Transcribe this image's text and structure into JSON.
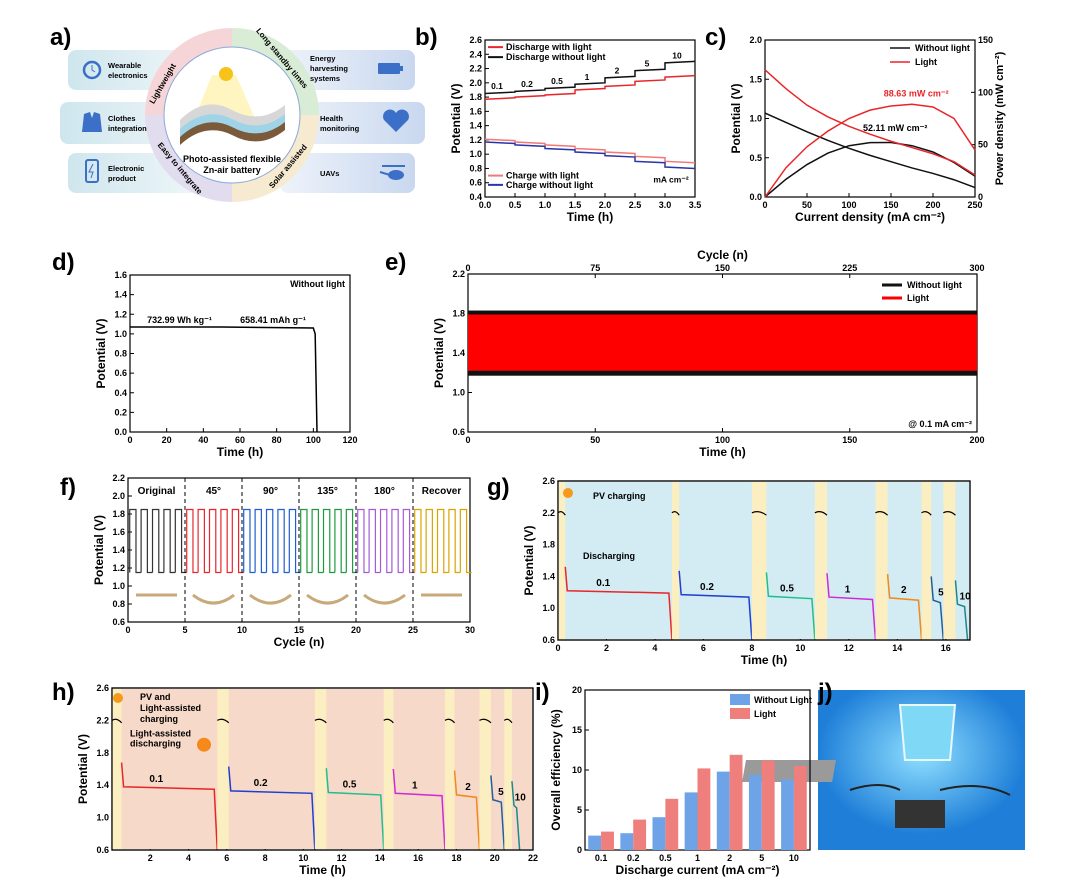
{
  "panel_labels": [
    "a)",
    "b)",
    "c)",
    "d)",
    "e)",
    "f)",
    "g)",
    "h)",
    "i)",
    "j)"
  ],
  "schematic": {
    "center_title_1": "Photo-assisted flexible",
    "center_title_2": "Zn-air battery",
    "ring": [
      "Lightweight",
      "Long standby times",
      "Easy to integrate",
      "Solar assisted"
    ],
    "left": [
      {
        "l1": "Wearable",
        "l2": "electronics",
        "icon": "watch-icon"
      },
      {
        "l1": "Clothes",
        "l2": "integration",
        "icon": "jacket-icon"
      },
      {
        "l1": "Electronic",
        "l2": "product",
        "icon": "phone-icon"
      }
    ],
    "right": [
      {
        "l1": "Energy",
        "l2": "harvesting",
        "l3": "systems",
        "icon": "battery-icon"
      },
      {
        "l1": "Health",
        "l2": "monitoring",
        "icon": "heart-icon"
      },
      {
        "l1": "UAVs",
        "icon": "helicopter-icon"
      }
    ]
  },
  "chart_data": [
    {
      "id": "b",
      "type": "line",
      "xlabel": "Time (h)",
      "ylabel": "Potential (V)",
      "xlim": [
        0,
        3.5
      ],
      "xticks": [
        "0.0",
        "0.5",
        "1.0",
        "1.5",
        "2.0",
        "2.5",
        "3.0",
        "3.5"
      ],
      "ylim": [
        0.4,
        2.6
      ],
      "yticks": [
        "0.4",
        "0.6",
        "0.8",
        "1.0",
        "1.2",
        "1.4",
        "1.6",
        "1.8",
        "2.0",
        "2.2",
        "2.4",
        "2.6"
      ],
      "current_labels": [
        "0.1",
        "0.2",
        "0.5",
        "1",
        "2",
        "5",
        "10"
      ],
      "unit": "mA cm⁻²",
      "series": [
        {
          "name": "Discharge with light",
          "color": "#e8262a",
          "steps": [
            1.77,
            1.8,
            1.83,
            1.9,
            1.95,
            2.02,
            2.08
          ]
        },
        {
          "name": "Discharge without light",
          "color": "#111111",
          "steps": [
            1.85,
            1.88,
            1.92,
            1.98,
            2.07,
            2.17,
            2.28
          ]
        },
        {
          "name": "Charge with light",
          "color": "#f07a7a",
          "steps": [
            1.21,
            1.17,
            1.13,
            1.08,
            1.03,
            0.97,
            0.9
          ]
        },
        {
          "name": "Charge without light",
          "color": "#2b35a8",
          "steps": [
            1.17,
            1.13,
            1.08,
            1.03,
            0.98,
            0.9,
            0.82
          ]
        }
      ]
    },
    {
      "id": "c",
      "type": "line",
      "xlabel": "Current density (mA cm⁻²)",
      "ylabel": "Potential (V)",
      "ylabel_right": "Power density (mW cm⁻²)",
      "xlim": [
        0,
        250
      ],
      "xticks": [
        "0",
        "50",
        "100",
        "150",
        "200",
        "250"
      ],
      "ylim": [
        0,
        2.0
      ],
      "yticks": [
        "0.0",
        "0.5",
        "1.0",
        "1.5",
        "2.0"
      ],
      "ylim_right": [
        0,
        150
      ],
      "yticks_right": [
        "0",
        "50",
        "100",
        "150"
      ],
      "x": [
        0,
        25,
        50,
        75,
        100,
        125,
        150,
        175,
        200,
        225,
        250
      ],
      "series": [
        {
          "name": "Without light",
          "color": "#111111",
          "potential": [
            1.07,
            0.95,
            0.83,
            0.72,
            0.62,
            0.53,
            0.45,
            0.37,
            0.3,
            0.22,
            0.12
          ],
          "power": [
            0,
            17,
            31,
            42,
            49,
            52,
            52.11,
            49,
            43,
            33,
            20
          ]
        },
        {
          "name": "Light",
          "color": "#e8262a",
          "potential": [
            1.62,
            1.38,
            1.17,
            1.02,
            0.9,
            0.8,
            0.71,
            0.63,
            0.55,
            0.45,
            0.28
          ],
          "power": [
            0,
            28,
            48,
            63,
            75,
            83,
            87,
            88.63,
            86,
            75,
            45
          ]
        }
      ],
      "annotations": [
        "88.63 mW cm⁻²",
        "52.11 mW cm⁻²"
      ]
    },
    {
      "id": "d",
      "type": "line",
      "xlabel": "Time (h)",
      "ylabel": "Potential (V)",
      "xlim": [
        0,
        120
      ],
      "xticks": [
        "0",
        "20",
        "40",
        "60",
        "80",
        "100",
        "120"
      ],
      "ylim": [
        0,
        1.6
      ],
      "yticks": [
        "0.0",
        "0.2",
        "0.4",
        "0.6",
        "0.8",
        "1.0",
        "1.2",
        "1.4",
        "1.6"
      ],
      "points": [
        [
          0,
          1.07
        ],
        [
          50,
          1.07
        ],
        [
          100,
          1.06
        ],
        [
          101,
          1.0
        ],
        [
          101.5,
          0.5
        ],
        [
          102,
          0
        ]
      ],
      "annotations": [
        "Without light",
        "732.99 Wh kg⁻¹",
        "658.41 mAh g⁻¹"
      ]
    },
    {
      "id": "e",
      "type": "line",
      "xlabel": "Time (h)",
      "xlabel_top": "Cycle (n)",
      "ylabel": "Potential (V)",
      "xlim": [
        0,
        200
      ],
      "xticks": [
        "0",
        "50",
        "100",
        "150",
        "200"
      ],
      "xticks_top": [
        "0",
        "75",
        "150",
        "225",
        "300"
      ],
      "ylim": [
        0.6,
        2.2
      ],
      "yticks": [
        "0.6",
        "1.0",
        "1.4",
        "1.8",
        "2.2"
      ],
      "series": [
        {
          "name": "Without light",
          "color": "#111111",
          "low": 1.17,
          "high": 1.83
        },
        {
          "name": "Light",
          "color": "#ff0000",
          "low": 1.22,
          "high": 1.79
        }
      ],
      "annotation": "@ 0.1 mA cm⁻²"
    },
    {
      "id": "f",
      "type": "line",
      "xlabel": "Cycle (n)",
      "ylabel": "Potential (V)",
      "xlim": [
        0,
        30
      ],
      "xticks": [
        "0",
        "5",
        "10",
        "15",
        "20",
        "25",
        "30"
      ],
      "ylim": [
        0.6,
        2.2
      ],
      "yticks": [
        "0.6",
        "0.8",
        "1.0",
        "1.2",
        "1.4",
        "1.6",
        "1.8",
        "2.0",
        "2.2"
      ],
      "low": 1.15,
      "high": 1.85,
      "segments": [
        {
          "label": "Original",
          "color": "#333333"
        },
        {
          "label": "45°",
          "color": "#e8262a"
        },
        {
          "label": "90°",
          "color": "#1f5fd0"
        },
        {
          "label": "135°",
          "color": "#1d9a3c"
        },
        {
          "label": "180°",
          "color": "#a45ad8"
        },
        {
          "label": "Recover",
          "color": "#d9a400"
        }
      ]
    },
    {
      "id": "g",
      "type": "line",
      "xlabel": "Time (h)",
      "ylabel": "Potential (V)",
      "xlim": [
        0,
        17
      ],
      "xticks": [
        "0",
        "2",
        "4",
        "6",
        "8",
        "10",
        "12",
        "14",
        "16"
      ],
      "ylim": [
        0.6,
        2.6
      ],
      "yticks": [
        "0.6",
        "1.0",
        "1.4",
        "1.8",
        "2.2",
        "2.6"
      ],
      "labels": [
        "PV charging",
        "Discharging"
      ],
      "segments": [
        {
          "current": "0.1",
          "start": 0.3,
          "end": 4.7,
          "v": 1.22,
          "color": "#e8262a"
        },
        {
          "current": "0.2",
          "start": 5.0,
          "end": 8.0,
          "v": 1.17,
          "color": "#1f3fd0"
        },
        {
          "current": "0.5",
          "start": 8.6,
          "end": 10.6,
          "v": 1.15,
          "color": "#1fbf8a"
        },
        {
          "current": "1",
          "start": 11.1,
          "end": 13.1,
          "v": 1.14,
          "color": "#d02ad8"
        },
        {
          "current": "2",
          "start": 13.6,
          "end": 15.0,
          "v": 1.13,
          "color": "#f08a1a"
        },
        {
          "current": "5",
          "start": 15.4,
          "end": 15.9,
          "v": 1.1,
          "color": "#1f5fa0"
        },
        {
          "current": "10",
          "start": 16.4,
          "end": 16.9,
          "v": 1.05,
          "color": "#1a8a8a"
        }
      ]
    },
    {
      "id": "h",
      "type": "line",
      "xlabel": "Time (h)",
      "ylabel": "Potential (V)",
      "xlim": [
        0,
        22
      ],
      "xticks": [
        "2",
        "4",
        "6",
        "8",
        "10",
        "12",
        "14",
        "16",
        "18",
        "20",
        "22"
      ],
      "ylim": [
        0.6,
        2.6
      ],
      "yticks": [
        "0.6",
        "1.0",
        "1.4",
        "1.8",
        "2.2",
        "2.6"
      ],
      "labels": [
        "PV and",
        "Light-assisted",
        "charging",
        "Light-assisted",
        "discharging"
      ],
      "segments": [
        {
          "current": "0.1",
          "start": 0.5,
          "end": 5.5,
          "v": 1.38,
          "color": "#e8262a"
        },
        {
          "current": "0.2",
          "start": 6.1,
          "end": 10.6,
          "v": 1.33,
          "color": "#1f3fd0"
        },
        {
          "current": "0.5",
          "start": 11.2,
          "end": 14.2,
          "v": 1.31,
          "color": "#1fbf8a"
        },
        {
          "current": "1",
          "start": 14.7,
          "end": 17.4,
          "v": 1.3,
          "color": "#d02ad8"
        },
        {
          "current": "2",
          "start": 17.9,
          "end": 19.2,
          "v": 1.28,
          "color": "#f08a1a"
        },
        {
          "current": "5",
          "start": 19.8,
          "end": 20.5,
          "v": 1.22,
          "color": "#1f5fa0"
        },
        {
          "current": "10",
          "start": 20.9,
          "end": 21.3,
          "v": 1.15,
          "color": "#1a8a8a"
        }
      ]
    },
    {
      "id": "i",
      "type": "bar",
      "xlabel": "Discharge current (mA cm⁻²)",
      "ylabel": "Overall efficiency (%)",
      "categories": [
        "0.1",
        "0.2",
        "0.5",
        "1",
        "2",
        "5",
        "10"
      ],
      "ylim": [
        0,
        20
      ],
      "yticks": [
        "0",
        "5",
        "10",
        "15",
        "20"
      ],
      "series": [
        {
          "name": "Without Light",
          "color": "#6fa3e8",
          "values": [
            1.8,
            2.1,
            4.1,
            7.2,
            9.8,
            9.4,
            8.8
          ]
        },
        {
          "name": "Light",
          "color": "#ee7f7c",
          "values": [
            2.3,
            3.8,
            6.4,
            10.2,
            11.9,
            11.2,
            10.5
          ]
        }
      ],
      "legend": "top-right"
    }
  ]
}
